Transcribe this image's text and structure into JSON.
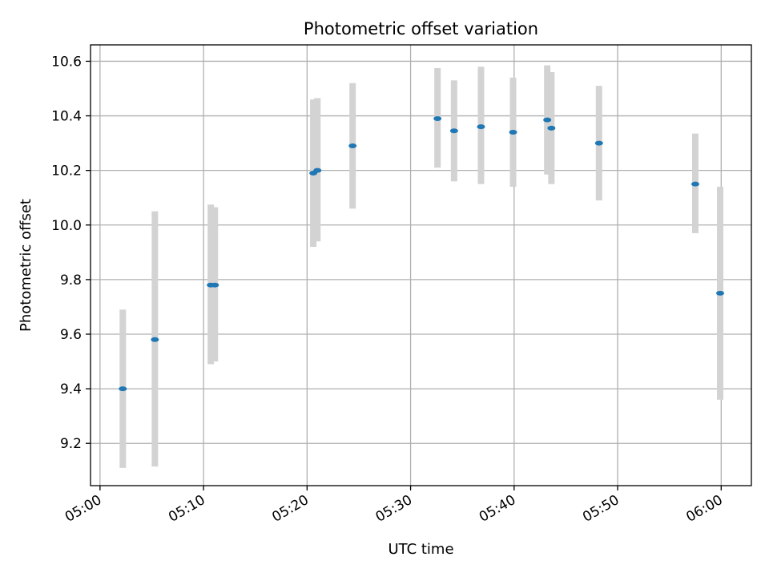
{
  "chart_data": {
    "type": "scatter",
    "title": "Photometric offset variation",
    "xlabel": "UTC time",
    "ylabel": "Photometric offset",
    "xlim": [
      "04:59:05",
      "06:02:55"
    ],
    "ylim": [
      9.045,
      10.66
    ],
    "x_ticks": [
      "05:00",
      "05:10",
      "05:20",
      "05:30",
      "05:40",
      "05:50",
      "06:00"
    ],
    "y_ticks": [
      "9.2",
      "9.4",
      "9.6",
      "9.8",
      "10.0",
      "10.2",
      "10.4",
      "10.6"
    ],
    "grid": true,
    "colors": {
      "point": "#1f77b4",
      "error_bar": "#d3d3d3",
      "grid": "#b0b0b0"
    },
    "points": [
      {
        "x": "05:02:12",
        "y": 9.4,
        "ylow": 9.11,
        "yhigh": 9.69
      },
      {
        "x": "05:05:18",
        "y": 9.58,
        "ylow": 9.115,
        "yhigh": 10.05
      },
      {
        "x": "05:10:42",
        "y": 9.78,
        "ylow": 9.49,
        "yhigh": 10.075
      },
      {
        "x": "05:11:06",
        "y": 9.78,
        "ylow": 9.5,
        "yhigh": 10.065
      },
      {
        "x": "05:20:36",
        "y": 10.19,
        "ylow": 9.92,
        "yhigh": 10.46
      },
      {
        "x": "05:21:00",
        "y": 10.2,
        "ylow": 9.94,
        "yhigh": 10.465
      },
      {
        "x": "05:24:24",
        "y": 10.29,
        "ylow": 10.06,
        "yhigh": 10.52
      },
      {
        "x": "05:32:36",
        "y": 10.39,
        "ylow": 10.21,
        "yhigh": 10.575
      },
      {
        "x": "05:34:12",
        "y": 10.345,
        "ylow": 10.16,
        "yhigh": 10.53
      },
      {
        "x": "05:36:48",
        "y": 10.36,
        "ylow": 10.15,
        "yhigh": 10.58
      },
      {
        "x": "05:39:54",
        "y": 10.34,
        "ylow": 10.14,
        "yhigh": 10.54
      },
      {
        "x": "05:43:12",
        "y": 10.385,
        "ylow": 10.185,
        "yhigh": 10.585
      },
      {
        "x": "05:43:36",
        "y": 10.355,
        "ylow": 10.15,
        "yhigh": 10.56
      },
      {
        "x": "05:48:12",
        "y": 10.3,
        "ylow": 10.09,
        "yhigh": 10.51
      },
      {
        "x": "05:57:30",
        "y": 10.15,
        "ylow": 9.97,
        "yhigh": 10.335
      },
      {
        "x": "05:59:54",
        "y": 9.75,
        "ylow": 9.36,
        "yhigh": 10.14
      }
    ]
  }
}
